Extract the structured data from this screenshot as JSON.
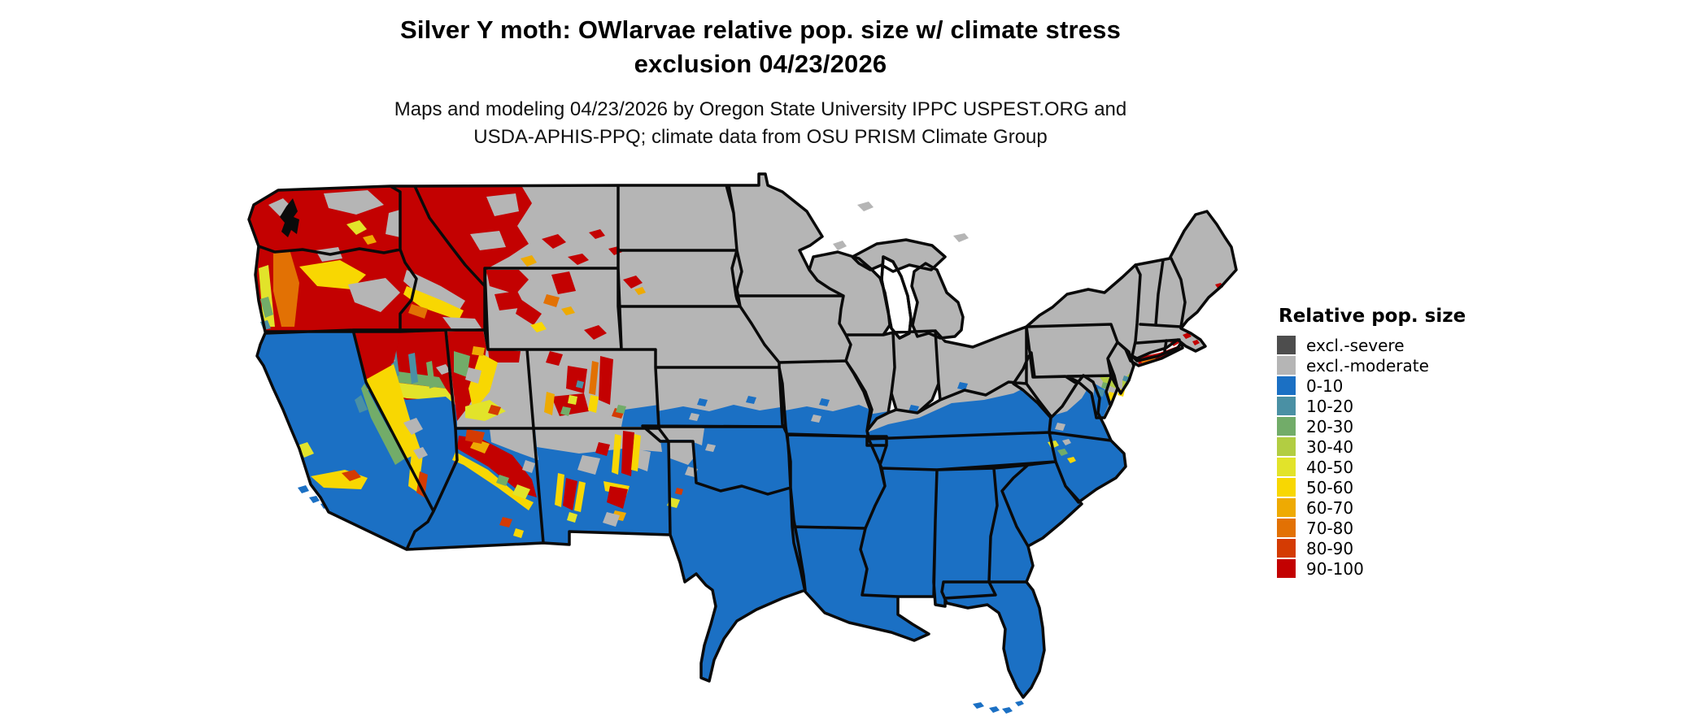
{
  "title": {
    "line1": "Silver Y moth: OWlarvae relative pop. size w/ climate stress",
    "line2": "exclusion 04/23/2026"
  },
  "subtitle": {
    "line1": "Maps and modeling 04/23/2026 by Oregon State University IPPC USPEST.ORG and",
    "line2": "USDA-APHIS-PPQ; climate data from OSU PRISM Climate Group"
  },
  "legend": {
    "title": "Relative pop. size",
    "items": [
      {
        "label": "excl.-severe",
        "color": "#4d4d4d"
      },
      {
        "label": "excl.-moderate",
        "color": "#b5b5b5"
      },
      {
        "label": "0-10",
        "color": "#1b70c4"
      },
      {
        "label": "10-20",
        "color": "#4a90a4"
      },
      {
        "label": "20-30",
        "color": "#72ac69"
      },
      {
        "label": "30-40",
        "color": "#b2cd42"
      },
      {
        "label": "40-50",
        "color": "#e2e32a"
      },
      {
        "label": "50-60",
        "color": "#f8d702"
      },
      {
        "label": "60-70",
        "color": "#eeaa02"
      },
      {
        "label": "70-80",
        "color": "#e27104"
      },
      {
        "label": "80-90",
        "color": "#d43b03"
      },
      {
        "label": "90-100",
        "color": "#c30101"
      }
    ]
  },
  "palette": {
    "severe": "#4d4d4d",
    "moderate": "#b5b5b5",
    "p0": "#1b70c4",
    "p10": "#4a90a4",
    "p20": "#72ac69",
    "p30": "#b2cd42",
    "p40": "#e2e32a",
    "p50": "#f8d702",
    "p60": "#eeaa02",
    "p70": "#e27104",
    "p80": "#d43b03",
    "p90": "#c30101"
  },
  "map_reading": {
    "type": "choropleth-raster",
    "region": "contiguous United States",
    "dominant_classes": {
      "pacific_northwest_and_intermountain_west": "90-100 with 40-70 fringes and excl.-moderate patches",
      "northern_plains_midwest_northeast": "excl.-moderate",
      "southern_half_california_to_virginia": "0-10",
      "mountain_west_transition_zones": "mosaic of 10-90 classes",
      "long_island_coastal_new_england": "70-100 streak"
    }
  }
}
